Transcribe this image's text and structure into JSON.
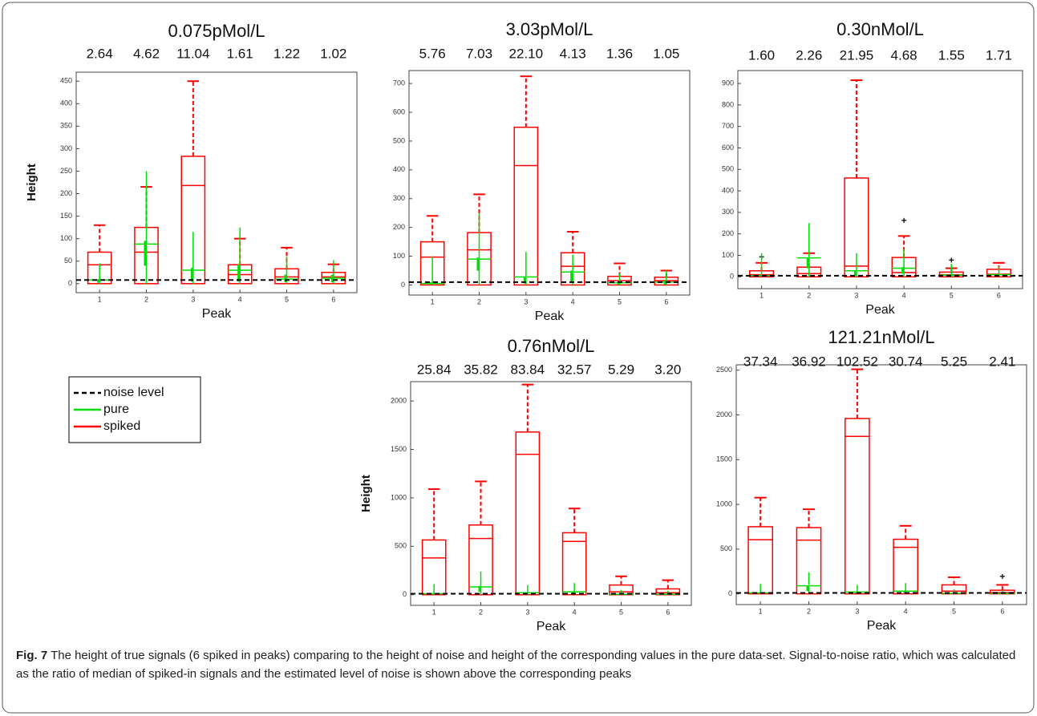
{
  "chart_data": [
    {
      "type": "box",
      "title": "0.075pMol/L",
      "snr_labels": [
        "2.64",
        "4.62",
        "11.04",
        "1.61",
        "1.22",
        "1.02"
      ],
      "xlabel": "Peak",
      "ylabel": "Height",
      "categories": [
        "1",
        "2",
        "3",
        "4",
        "5",
        "6"
      ],
      "ylim": [
        -20,
        470
      ],
      "yticks": [
        0,
        50,
        100,
        150,
        200,
        250,
        300,
        350,
        400,
        450
      ],
      "noise_level": 8,
      "series": [
        {
          "color": "#ff0000",
          "values": [
            [
              0,
              0,
              42,
              70,
              130
            ],
            [
              0,
              0,
              70,
              125,
              215
            ],
            [
              0,
              0,
              218,
              283,
              450
            ],
            [
              0,
              0,
              20,
              42,
              100
            ],
            [
              0,
              0,
              15,
              33,
              80
            ],
            [
              0,
              0,
              15,
              25,
              43
            ]
          ]
        },
        {
          "color": "#00dd00",
          "values": [
            [
              0,
              2,
              8,
              10,
              45
            ],
            [
              0,
              40,
              88,
              95,
              250
            ],
            [
              0,
              5,
              30,
              35,
              115
            ],
            [
              0,
              5,
              30,
              42,
              125
            ],
            [
              0,
              3,
              10,
              20,
              60
            ],
            [
              0,
              3,
              12,
              20,
              52
            ]
          ]
        }
      ]
    },
    {
      "type": "box",
      "title": "3.03pMol/L",
      "snr_labels": [
        "5.76",
        "7.03",
        "22.10",
        "4.13",
        "1.36",
        "1.05"
      ],
      "xlabel": "Peak",
      "categories": [
        "1",
        "2",
        "3",
        "4",
        "5",
        "6"
      ],
      "ylim": [
        -35,
        745
      ],
      "yticks": [
        0,
        100,
        200,
        300,
        400,
        500,
        600,
        700
      ],
      "noise_level": 10,
      "series": [
        {
          "color": "#ff0000",
          "values": [
            [
              0,
              0,
              97,
              150,
              240
            ],
            [
              0,
              0,
              122,
              182,
              315
            ],
            [
              0,
              0,
              415,
              548,
              725
            ],
            [
              0,
              0,
              65,
              112,
              185
            ],
            [
              0,
              0,
              15,
              30,
              75
            ],
            [
              0,
              0,
              15,
              27,
              50
            ]
          ]
        },
        {
          "color": "#00dd00",
          "values": [
            [
              0,
              2,
              5,
              10,
              100
            ],
            [
              0,
              50,
              90,
              95,
              250
            ],
            [
              0,
              5,
              28,
              30,
              115
            ],
            [
              0,
              10,
              45,
              50,
              105
            ],
            [
              0,
              2,
              8,
              10,
              40
            ],
            [
              0,
              2,
              10,
              15,
              50
            ]
          ]
        }
      ]
    },
    {
      "type": "box",
      "title": "0.30nMol/L",
      "snr_labels": [
        "1.60",
        "2.26",
        "21.95",
        "4.68",
        "1.55",
        "1.71"
      ],
      "xlabel": "Peak",
      "categories": [
        "1",
        "2",
        "3",
        "4",
        "5",
        "6"
      ],
      "ylim": [
        -55,
        960
      ],
      "yticks": [
        0,
        100,
        200,
        300,
        400,
        500,
        600,
        700,
        800,
        900
      ],
      "noise_level": 5,
      "series": [
        {
          "color": "#ff0000",
          "values": [
            [
              0,
              0,
              10,
              28,
              65
            ],
            [
              0,
              0,
              15,
              45,
              110
            ],
            [
              0,
              0,
              50,
              460,
              915
            ],
            [
              0,
              0,
              20,
              90,
              190
            ],
            [
              0,
              0,
              10,
              22,
              40
            ],
            [
              0,
              0,
              12,
              35,
              65
            ]
          ],
          "outliers": [
            [
              90
            ],
            [],
            [],
            [
              260
            ],
            [
              75
            ],
            []
          ]
        },
        {
          "color": "#00dd00",
          "values": [
            [
              0,
              2,
              5,
              10,
              110
            ],
            [
              0,
              40,
              88,
              90,
              250
            ],
            [
              0,
              5,
              28,
              30,
              110
            ],
            [
              0,
              15,
              40,
              45,
              130
            ],
            [
              0,
              2,
              8,
              10,
              60
            ],
            [
              0,
              2,
              10,
              12,
              50
            ]
          ]
        }
      ]
    },
    {
      "type": "box",
      "title": "0.76nMol/L",
      "snr_labels": [
        "25.84",
        "35.82",
        "83.84",
        "32.57",
        "5.29",
        "3.20"
      ],
      "xlabel": "Peak",
      "ylabel": "Height",
      "categories": [
        "1",
        "2",
        "3",
        "4",
        "5",
        "6"
      ],
      "ylim": [
        -110,
        2200
      ],
      "yticks": [
        0,
        500,
        1000,
        1500,
        2000
      ],
      "noise_level": 10,
      "series": [
        {
          "color": "#ff0000",
          "values": [
            [
              0,
              0,
              380,
              565,
              1090
            ],
            [
              0,
              0,
              580,
              720,
              1170
            ],
            [
              0,
              0,
              1450,
              1680,
              2170
            ],
            [
              0,
              0,
              550,
              640,
              890
            ],
            [
              0,
              0,
              30,
              100,
              190
            ],
            [
              0,
              0,
              20,
              60,
              150
            ]
          ]
        },
        {
          "color": "#00dd00",
          "values": [
            [
              0,
              5,
              10,
              15,
              110
            ],
            [
              0,
              30,
              80,
              90,
              240
            ],
            [
              0,
              5,
              20,
              25,
              100
            ],
            [
              0,
              10,
              30,
              35,
              120
            ],
            [
              0,
              2,
              5,
              10,
              50
            ],
            [
              0,
              2,
              5,
              10,
              40
            ]
          ]
        }
      ]
    },
    {
      "type": "box",
      "title": "121.21nMol/L",
      "snr_labels": [
        "37.34",
        "36.92",
        "102.52",
        "30.74",
        "5.25",
        "2.41"
      ],
      "xlabel": "Peak",
      "categories": [
        "1",
        "2",
        "3",
        "4",
        "5",
        "6"
      ],
      "ylim": [
        -120,
        2560
      ],
      "yticks": [
        0,
        500,
        1000,
        1500,
        2000,
        2500
      ],
      "noise_level": 10,
      "series": [
        {
          "color": "#ff0000",
          "values": [
            [
              0,
              0,
              605,
              750,
              1075
            ],
            [
              0,
              0,
              600,
              740,
              945
            ],
            [
              0,
              0,
              1760,
              1960,
              2510
            ],
            [
              0,
              0,
              520,
              610,
              760
            ],
            [
              0,
              0,
              30,
              100,
              185
            ],
            [
              0,
              0,
              15,
              40,
              100
            ]
          ],
          "outliers": [
            [],
            [],
            [],
            [],
            [],
            [
              185
            ]
          ]
        },
        {
          "color": "#00dd00",
          "values": [
            [
              0,
              5,
              10,
              15,
              110
            ],
            [
              0,
              30,
              90,
              95,
              240
            ],
            [
              0,
              5,
              20,
              25,
              100
            ],
            [
              0,
              10,
              30,
              35,
              120
            ],
            [
              0,
              2,
              5,
              10,
              50
            ],
            [
              0,
              2,
              5,
              10,
              40
            ]
          ]
        }
      ]
    }
  ],
  "legend": [
    {
      "name": "noise level",
      "color": "#000000"
    },
    {
      "name": "pure",
      "color": "#00dd00"
    },
    {
      "name": "spiked",
      "color": "#ff0000"
    }
  ],
  "caption": {
    "label": "Fig. 7",
    "text": "The height of true signals (6 spiked in peaks) comparing to the height of noise and height of the corresponding values in the pure data-set. Signal-to-noise ratio, which was calculated as the ratio of median of spiked-in signals and the estimated level of noise is shown above the corresponding peaks"
  }
}
